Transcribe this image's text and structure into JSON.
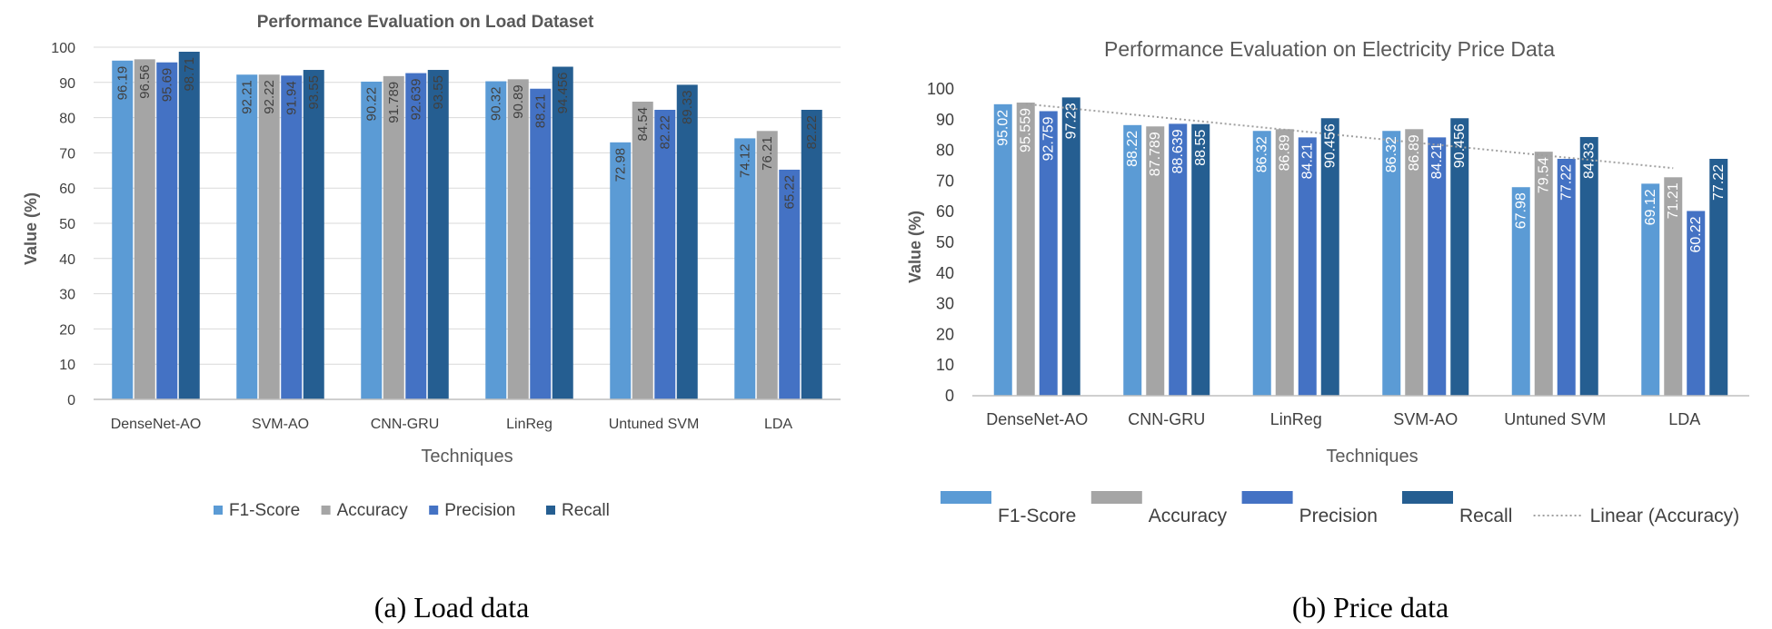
{
  "colors": {
    "f1": "#5B9BD5",
    "accuracy": "#A5A5A5",
    "precision": "#4472C4",
    "recall": "#255E91",
    "grid": "#D9D9D9",
    "trend": "#A0A0A0"
  },
  "chart_data": [
    {
      "type": "bar",
      "title": "Performance Evaluation on Load Dataset",
      "xlabel": "Techniques",
      "ylabel": "Value (%)",
      "ylim": [
        0,
        100
      ],
      "yticks": [
        "0",
        "10",
        "20",
        "30",
        "40",
        "50",
        "60",
        "70",
        "80",
        "90",
        "100"
      ],
      "categories": [
        "DenseNet-AO",
        "SVM-AO",
        "CNN-GRU",
        "LinReg",
        "Untuned SVM",
        "LDA"
      ],
      "series": [
        {
          "name": "F1-Score",
          "values": [
            96.19,
            92.21,
            90.22,
            90.32,
            72.98,
            74.12
          ],
          "labels": [
            "96.19",
            "92.21",
            "90.22",
            "90.32",
            "72.98",
            "74.12"
          ]
        },
        {
          "name": "Accuracy",
          "values": [
            96.56,
            92.22,
            91.789,
            90.89,
            84.54,
            76.21
          ],
          "labels": [
            "96.56",
            "92.22",
            "91.789",
            "90.89",
            "84.54",
            "76.21"
          ]
        },
        {
          "name": "Precision",
          "values": [
            95.69,
            91.94,
            92.639,
            88.21,
            82.22,
            65.22
          ],
          "labels": [
            "95.69",
            "91.94",
            "92.639",
            "88.21",
            "82.22",
            "65.22"
          ]
        },
        {
          "name": "Recall",
          "values": [
            98.71,
            93.55,
            93.55,
            94.456,
            89.33,
            82.22
          ],
          "labels": [
            "98.71",
            "93.55",
            "93.55",
            "94.456",
            "89.33",
            "82.22"
          ]
        }
      ],
      "legend": "bottom",
      "grid": true,
      "caption": "(a) Load data"
    },
    {
      "type": "bar",
      "title": "Performance Evaluation on Electricity Price Data",
      "xlabel": "Techniques",
      "ylabel": "Value (%)",
      "ylim": [
        0,
        100
      ],
      "yticks": [
        "0",
        "10",
        "20",
        "30",
        "40",
        "50",
        "60",
        "70",
        "80",
        "90",
        "100"
      ],
      "categories": [
        "DenseNet-AO",
        "CNN-GRU",
        "LinReg",
        "SVM-AO",
        "Untuned SVM",
        "LDA"
      ],
      "series": [
        {
          "name": "F1-Score",
          "values": [
            95.02,
            88.22,
            86.32,
            86.32,
            67.98,
            69.12
          ],
          "labels": [
            "95.02",
            "88.22",
            "86.32",
            "86.32",
            "67.98",
            "69.12"
          ]
        },
        {
          "name": "Accuracy",
          "values": [
            95.559,
            87.789,
            86.89,
            86.89,
            79.54,
            71.21
          ],
          "labels": [
            "95.559",
            "87.789",
            "86.89",
            "86.89",
            "79.54",
            "71.21"
          ]
        },
        {
          "name": "Precision",
          "values": [
            92.759,
            88.639,
            84.21,
            84.21,
            77.22,
            60.22
          ],
          "labels": [
            "92.759",
            "88.639",
            "84.21",
            "84.21",
            "77.22",
            "60.22"
          ]
        },
        {
          "name": "Recall",
          "values": [
            97.23,
            88.55,
            90.456,
            90.456,
            84.33,
            77.22
          ],
          "labels": [
            "97.23",
            "88.55",
            "90.456",
            "90.456",
            "84.33",
            "77.22"
          ]
        }
      ],
      "trendline": {
        "name": "Linear (Accuracy)",
        "series": "Accuracy",
        "style": "dotted"
      },
      "legend": "bottom",
      "grid": false,
      "caption": "(b) Price data"
    }
  ]
}
